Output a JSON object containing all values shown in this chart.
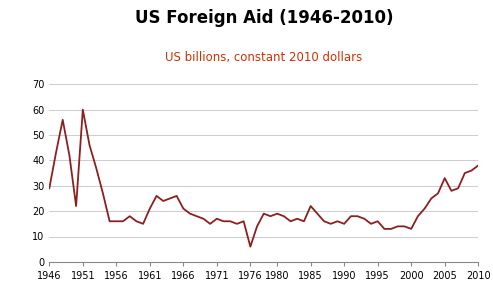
{
  "title": "US Foreign Aid (1946-2010)",
  "subtitle": "US billions, constant 2010 dollars",
  "title_color": "#000000",
  "subtitle_color": "#cc3300",
  "line_color": "#8b2020",
  "background_color": "#ffffff",
  "ylim": [
    0,
    70
  ],
  "yticks": [
    0,
    10,
    20,
    30,
    40,
    50,
    60,
    70
  ],
  "xticks": [
    1946,
    1951,
    1956,
    1961,
    1966,
    1971,
    1976,
    1980,
    1985,
    1990,
    1995,
    2000,
    2005,
    2010
  ],
  "years": [
    1946,
    1947,
    1948,
    1949,
    1950,
    1951,
    1952,
    1953,
    1954,
    1955,
    1956,
    1957,
    1958,
    1959,
    1960,
    1961,
    1962,
    1963,
    1964,
    1965,
    1966,
    1967,
    1968,
    1969,
    1970,
    1971,
    1972,
    1973,
    1974,
    1975,
    1976,
    1977,
    1978,
    1979,
    1980,
    1981,
    1982,
    1983,
    1984,
    1985,
    1986,
    1987,
    1988,
    1989,
    1990,
    1991,
    1992,
    1993,
    1994,
    1995,
    1996,
    1997,
    1998,
    1999,
    2000,
    2001,
    2002,
    2003,
    2004,
    2005,
    2006,
    2007,
    2008,
    2009,
    2010
  ],
  "values": [
    29,
    43,
    56,
    42,
    22,
    60,
    46,
    37,
    27,
    16,
    16,
    16,
    18,
    16,
    15,
    21,
    26,
    24,
    25,
    26,
    21,
    19,
    18,
    17,
    15,
    17,
    16,
    16,
    15,
    16,
    6,
    14,
    19,
    18,
    19,
    18,
    16,
    17,
    16,
    22,
    19,
    16,
    15,
    16,
    15,
    18,
    18,
    17,
    15,
    16,
    13,
    13,
    14,
    14,
    13,
    18,
    21,
    25,
    27,
    33,
    28,
    29,
    35,
    36,
    38
  ]
}
